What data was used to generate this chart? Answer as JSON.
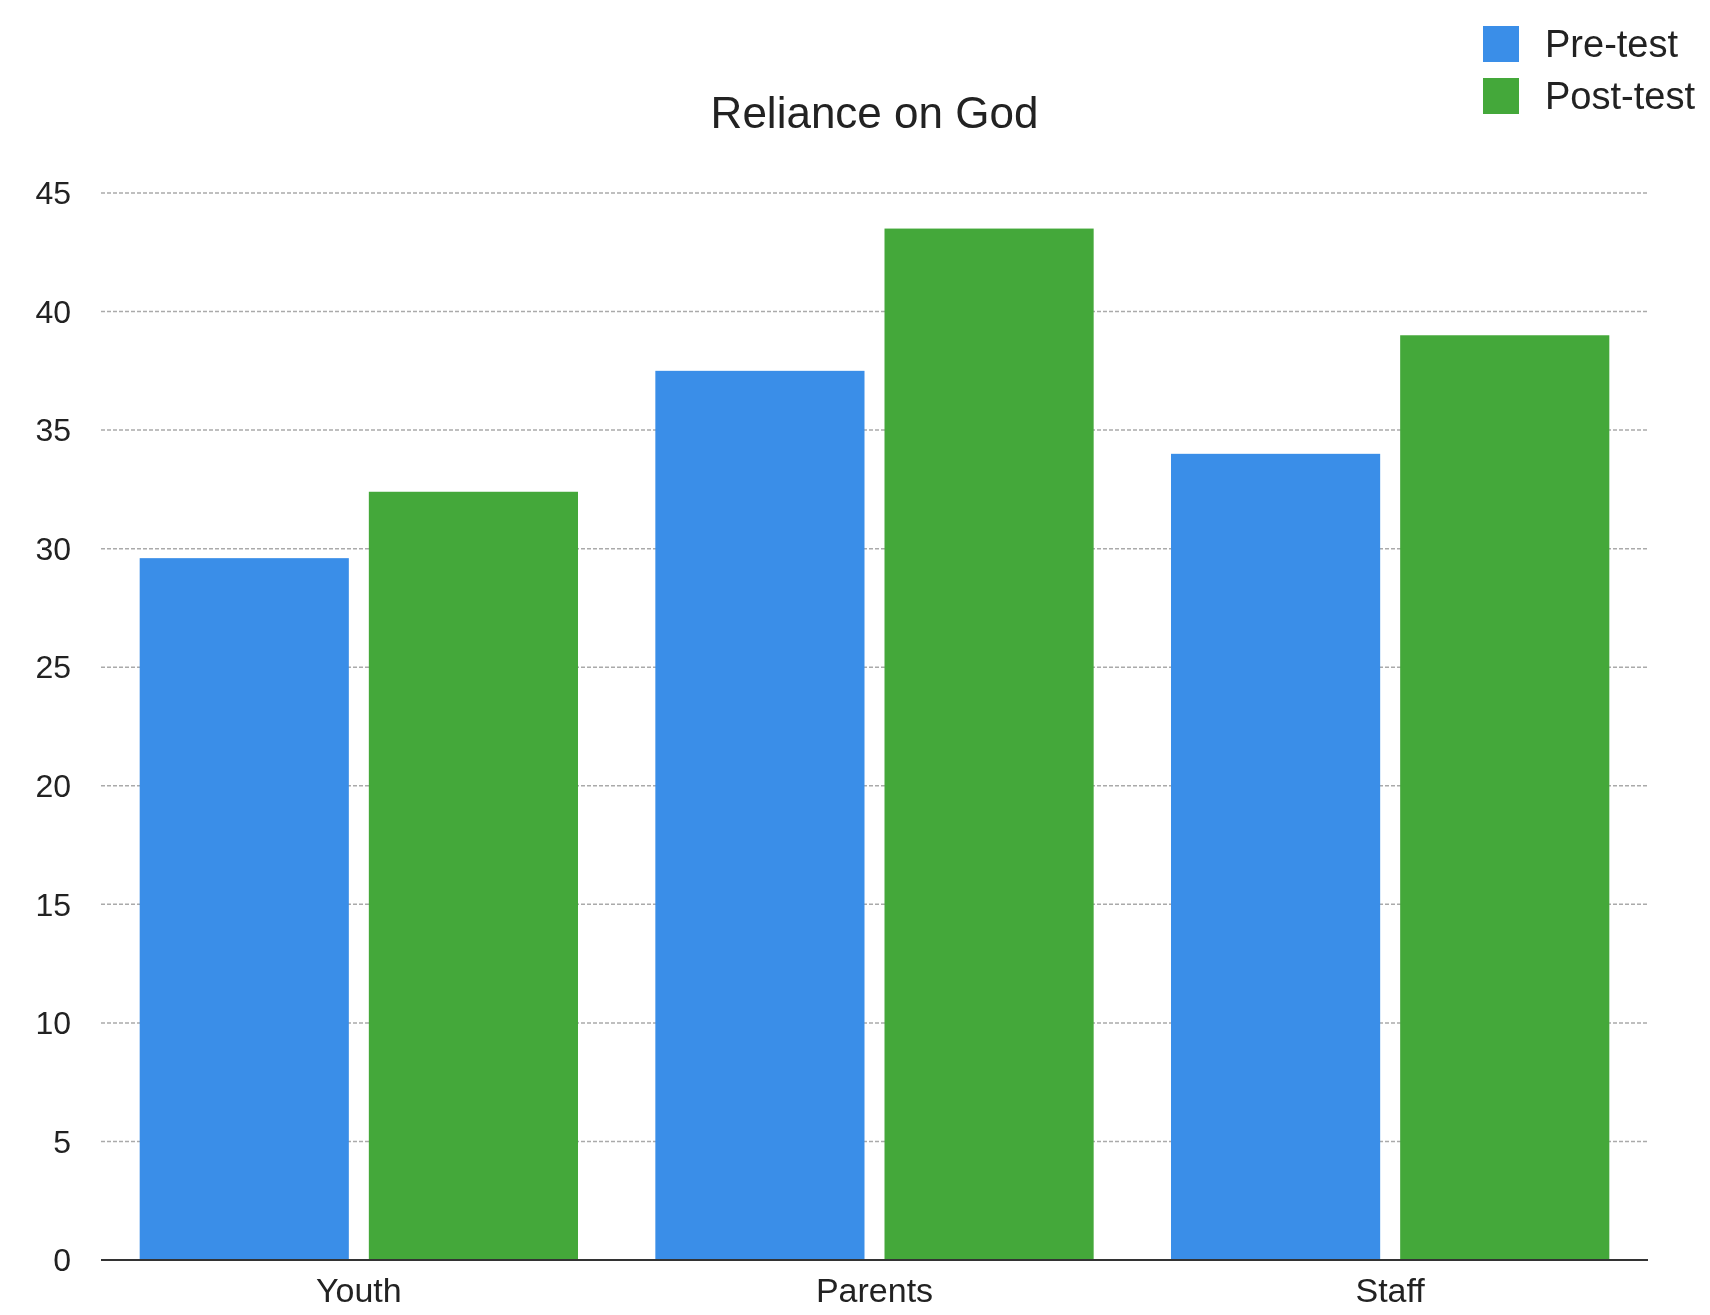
{
  "chart_data": {
    "type": "bar",
    "title": "Reliance on God",
    "categories": [
      "Youth",
      "Parents",
      "Staff"
    ],
    "series": [
      {
        "name": "Pre-test",
        "color": "#3a8ee8",
        "values": [
          29.6,
          37.5,
          34
        ]
      },
      {
        "name": "Post-test",
        "color": "#44a83a",
        "values": [
          32.4,
          43.5,
          39
        ]
      }
    ],
    "ylim": [
      0,
      45
    ],
    "yticks": [
      0,
      5,
      10,
      15,
      20,
      25,
      30,
      35,
      40,
      45
    ],
    "grid": "y",
    "legend": "top right"
  }
}
